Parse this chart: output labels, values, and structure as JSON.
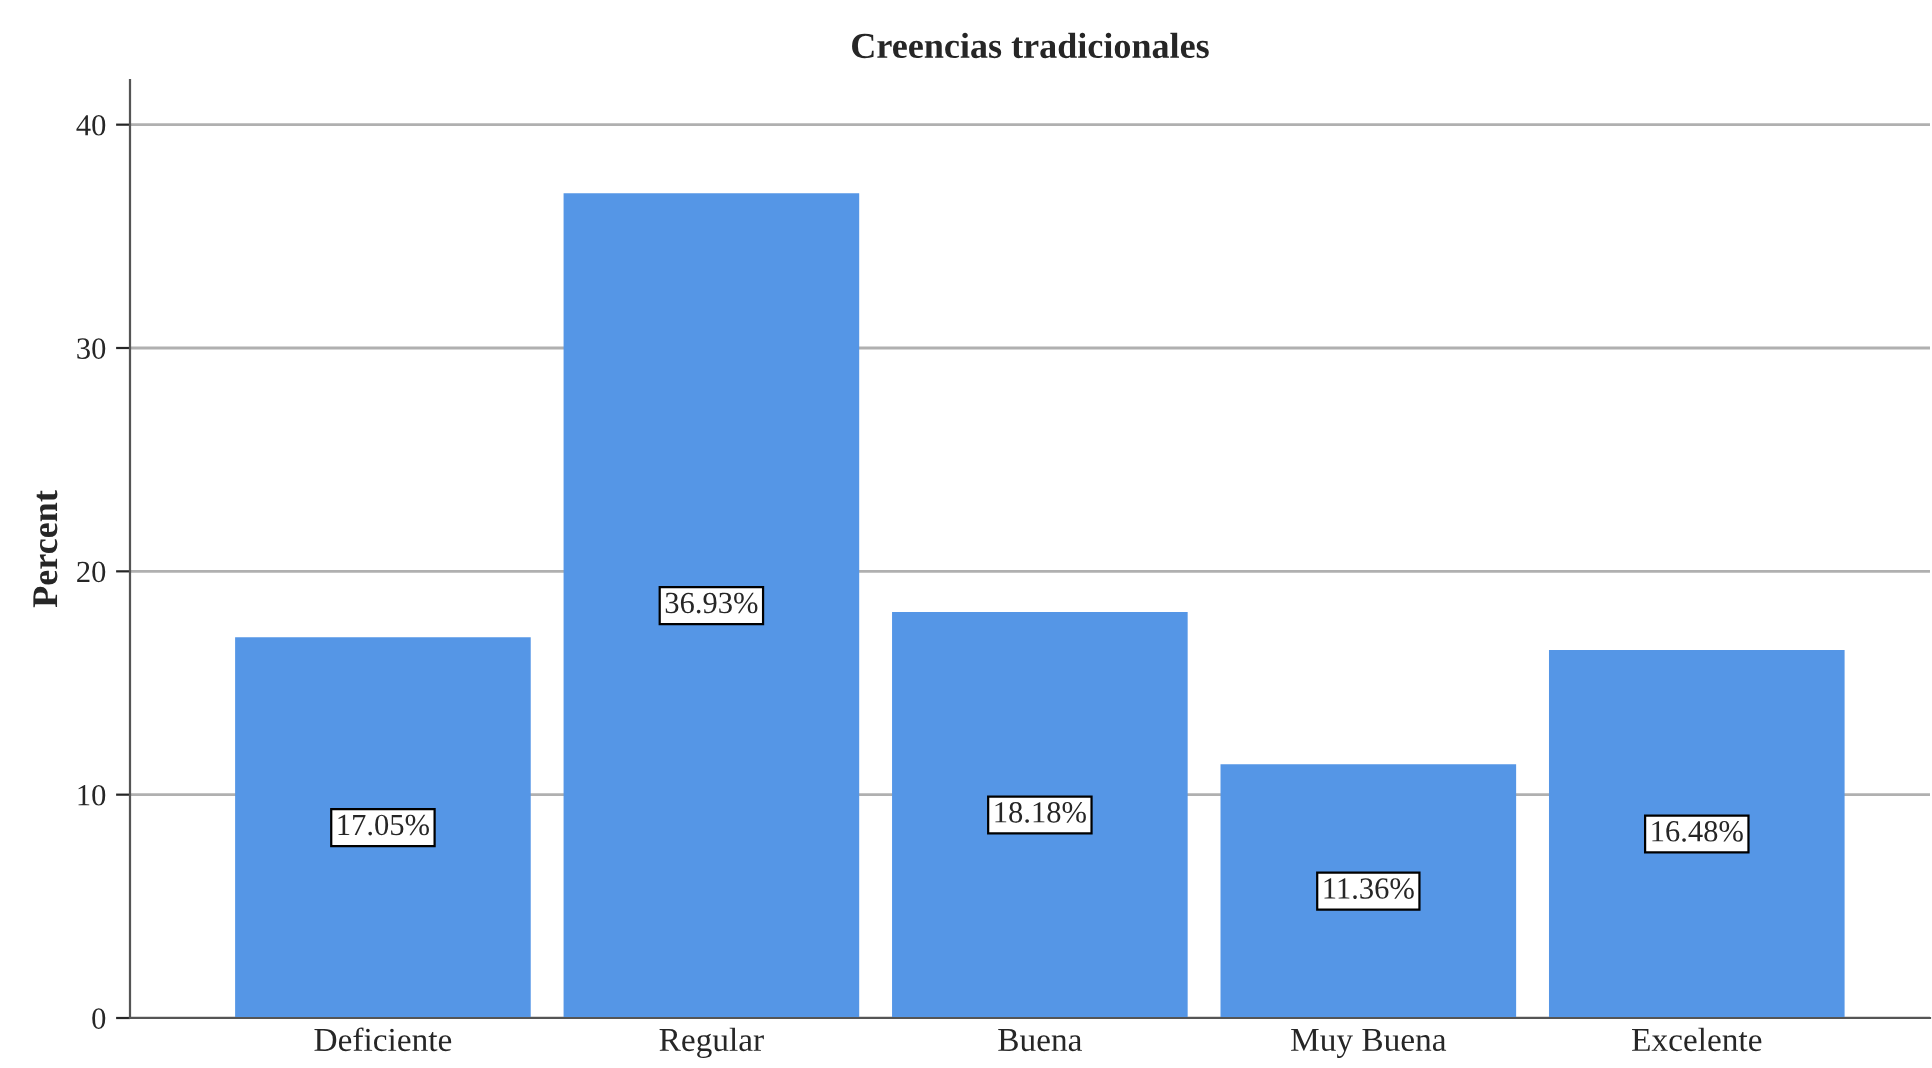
{
  "chart_data": {
    "type": "bar",
    "title": "Creencias tradicionales",
    "ylabel": "Percent",
    "categories": [
      "Deficiente",
      "Regular",
      "Buena",
      "Muy Buena",
      "Excelente"
    ],
    "values": [
      17.05,
      36.93,
      18.18,
      11.36,
      16.48
    ],
    "value_labels": [
      "17.05%",
      "36.93%",
      "18.18%",
      "11.36%",
      "16.48%"
    ],
    "color": "#5596e6",
    "ylim": [
      0,
      42
    ],
    "yticks": [
      0,
      10,
      20,
      30,
      40
    ],
    "grid": "y",
    "legend": false
  }
}
